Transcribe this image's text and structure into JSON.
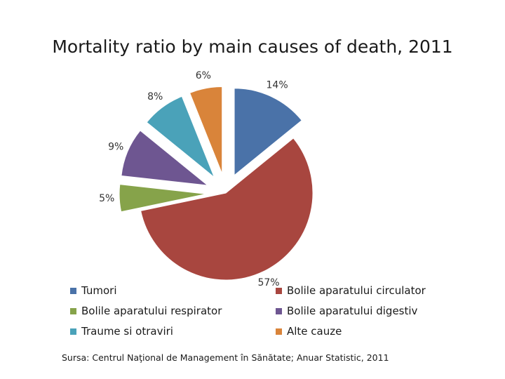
{
  "chart_data": {
    "type": "pie",
    "title": "Mortality ratio by main causes of death, 2011",
    "slices": [
      {
        "name": "Tumori",
        "value": 14,
        "label": "14%",
        "color": "#4a72a8"
      },
      {
        "name": "Bolile aparatului circulator",
        "value": 57,
        "label": "57%",
        "color": "#a8463f"
      },
      {
        "name": "Bolile aparatului respirator",
        "value": 5,
        "label": "5%",
        "color": "#86a34a"
      },
      {
        "name": "Bolile aparatului digestiv",
        "value": 9,
        "label": "9%",
        "color": "#6e5691"
      },
      {
        "name": "Traume si otraviri",
        "value": 8,
        "label": "8%",
        "color": "#4aa2b9"
      },
      {
        "name": "Alte cauze",
        "value": 6,
        "label": "6%",
        "color": "#d9843a"
      }
    ],
    "legend_placement": "bottom",
    "exploded": true
  },
  "source": "Sursa: Centrul Naţional de Management în Sănătate; Anuar Statistic, 2011"
}
